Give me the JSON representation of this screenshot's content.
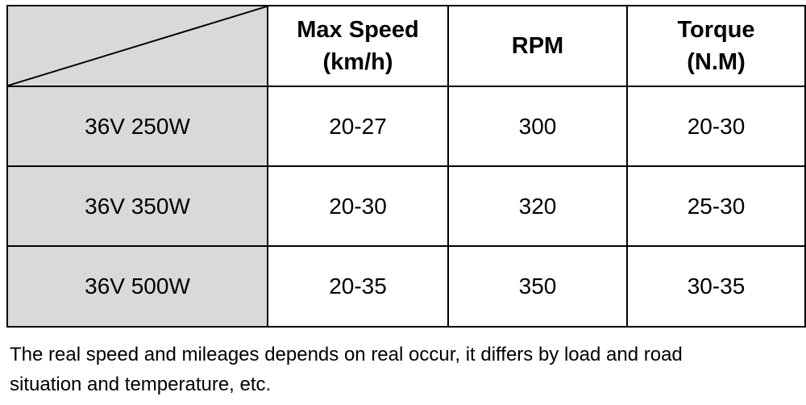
{
  "table": {
    "headers": [
      {
        "line1": "Max Speed",
        "line2": "(km/h)"
      },
      {
        "line1": "RPM",
        "line2": ""
      },
      {
        "line1": "Torque",
        "line2": "(N.M)"
      }
    ],
    "rows": [
      {
        "label": "36V 250W",
        "max_speed": "20-27",
        "rpm": "300",
        "torque": "20-30"
      },
      {
        "label": "36V 350W",
        "max_speed": "20-30",
        "rpm": "320",
        "torque": "25-30"
      },
      {
        "label": "36V 500W",
        "max_speed": "20-35",
        "rpm": "350",
        "torque": "30-35"
      }
    ]
  },
  "note": {
    "line1": "The real speed and mileages depends on real occur, it differs by load and road",
    "line2": "situation and temperature, etc."
  },
  "colors": {
    "label_fill": "#d9d9d9",
    "border": "#000000"
  }
}
